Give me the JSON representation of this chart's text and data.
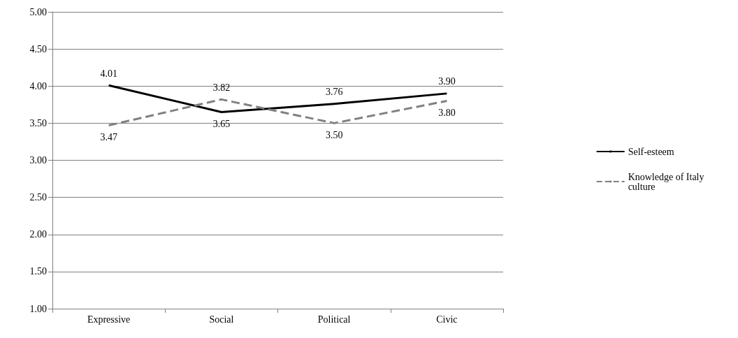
{
  "chart_data": {
    "type": "line",
    "categories": [
      "Expressive",
      "Social",
      "Political",
      "Civic"
    ],
    "series": [
      {
        "name": "Self-esteem",
        "color": "#000000",
        "line_style": "solid",
        "values": [
          4.01,
          3.65,
          3.76,
          3.9
        ],
        "value_labels": [
          "4.01",
          "3.65",
          "3.76",
          "3.90"
        ]
      },
      {
        "name": "Knowledge of Italy culture",
        "color": "#808080",
        "line_style": "dashed",
        "values": [
          3.47,
          3.82,
          3.5,
          3.8
        ],
        "value_labels": [
          "3.47",
          "3.82",
          "3.50",
          "3.80"
        ]
      }
    ],
    "ylim": [
      1,
      5
    ],
    "yticks": [
      {
        "value": 1,
        "label": "1.00"
      },
      {
        "value": 1.5,
        "label": "1.50"
      },
      {
        "value": 2,
        "label": "2.00"
      },
      {
        "value": 2.5,
        "label": "2.50"
      },
      {
        "value": 3,
        "label": "3.00"
      },
      {
        "value": 3.5,
        "label": "3.50"
      },
      {
        "value": 4,
        "label": "4.00"
      },
      {
        "value": 4.5,
        "label": "4.50"
      },
      {
        "value": 5,
        "label": "5.00"
      }
    ],
    "grid": "y",
    "legend": "right",
    "marker": "none"
  }
}
